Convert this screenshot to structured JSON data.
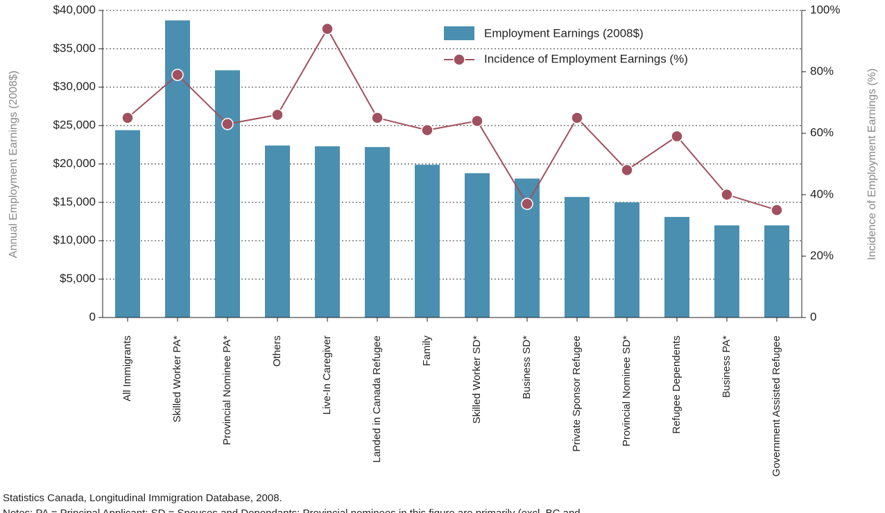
{
  "chart_data": {
    "type": "bar_line",
    "y_label": "Annual Employment Earnings (2008$)",
    "y2_label": "Incidence of Employment Earnings (%)",
    "categories": [
      "All Immigrants",
      "Skilled Worker PA*",
      "Provincial Nominee PA*",
      "Others",
      "Live-In Caregiver",
      "Landed in Canada Refugee",
      "Family",
      "Skilled Worker SD*",
      "Business SD*",
      "Private Sponsor Refugee",
      "Provincial Nominee SD*",
      "Refugee Dependents",
      "Business PA*",
      "Government Assisted Refugee"
    ],
    "series": [
      {
        "name": "Employment Earnings (2008$)",
        "color": "#4a8fb0",
        "values": [
          24400,
          38700,
          32200,
          22400,
          22300,
          22200,
          19900,
          18800,
          18100,
          15700,
          15000,
          13100,
          12000,
          12000
        ]
      },
      {
        "name": "Incidence of Employment Earnings (%)",
        "color": "#a0505e",
        "axis": "y2",
        "values": [
          65,
          79,
          63,
          66,
          94,
          65,
          61,
          64,
          37,
          65,
          48,
          59,
          40,
          35
        ]
      }
    ],
    "ylim": [
      0,
      40000
    ],
    "yticks": [
      0,
      {
        "value": 5000,
        "label": "$5,000"
      },
      {
        "value": 10000,
        "label": "$10,000"
      },
      {
        "value": 15000,
        "label": "$15,000"
      },
      {
        "value": 20000,
        "label": "$20,000"
      },
      {
        "value": 25000,
        "label": "$25,000"
      },
      {
        "value": 30000,
        "label": "$30,000"
      },
      {
        "value": 35000,
        "label": "$35,000"
      },
      {
        "value": 40000,
        "label": "$40,000"
      }
    ],
    "y2lim": [
      0,
      100
    ],
    "y2ticks": [
      0,
      {
        "value": 20,
        "label": "20%"
      },
      {
        "value": 40,
        "label": "40%"
      },
      {
        "value": 60,
        "label": "60%"
      },
      {
        "value": 80,
        "label": "80%"
      },
      {
        "value": 100,
        "label": "100%"
      }
    ],
    "grid": true,
    "notes": [
      "Statistics Canada, Longitudinal Immigration Database, 2008.",
      "Notes: PA = Principal Applicant; SD = Spouses and Dependants; Provincial nominees in this figure are primarily (excl. BC and"
    ]
  }
}
